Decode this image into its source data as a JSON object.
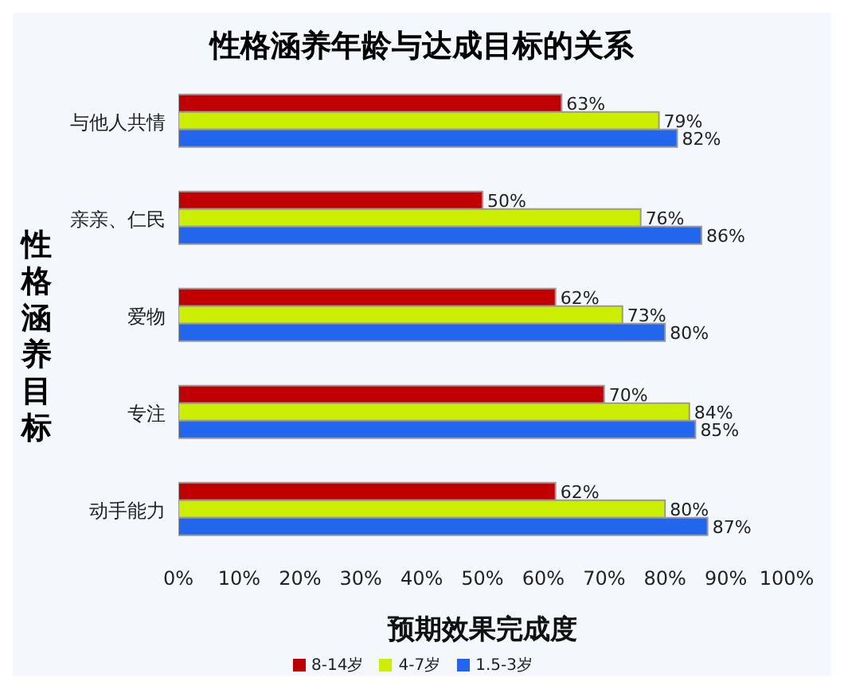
{
  "chart_data": {
    "type": "bar",
    "orientation": "horizontal",
    "title": "性格涵养年龄与达成目标的关系",
    "xlabel": "预期效果完成度",
    "ylabel": "性格涵养目标",
    "categories": [
      "与他人共情",
      "亲亲、仁民",
      "爱物",
      "专注",
      "动手能力"
    ],
    "series": [
      {
        "name": "8-14岁",
        "color": "#c00000",
        "values": [
          63,
          50,
          62,
          70,
          62
        ],
        "value_labels": [
          "63%",
          "50%",
          "62%",
          "70%",
          "62%"
        ]
      },
      {
        "name": "4-7岁",
        "color": "#ccee00",
        "values": [
          79,
          76,
          73,
          84,
          80
        ],
        "value_labels": [
          "79%",
          "76%",
          "73%",
          "84%",
          "80%"
        ]
      },
      {
        "name": "1.5-3岁",
        "color": "#2266ee",
        "values": [
          82,
          86,
          80,
          85,
          87
        ],
        "value_labels": [
          "82%",
          "86%",
          "80%",
          "85%",
          "87%"
        ]
      }
    ],
    "xlim": [
      0,
      100
    ],
    "xticks": [
      {
        "value": 0,
        "label": "0%"
      },
      {
        "value": 10,
        "label": "10%"
      },
      {
        "value": 20,
        "label": "20%"
      },
      {
        "value": 30,
        "label": "30%"
      },
      {
        "value": 40,
        "label": "40%"
      },
      {
        "value": 50,
        "label": "50%"
      },
      {
        "value": 60,
        "label": "60%"
      },
      {
        "value": 70,
        "label": "70%"
      },
      {
        "value": 80,
        "label": "80%"
      },
      {
        "value": 90,
        "label": "90%"
      },
      {
        "value": 100,
        "label": "100%"
      }
    ],
    "legend": "bottom"
  }
}
